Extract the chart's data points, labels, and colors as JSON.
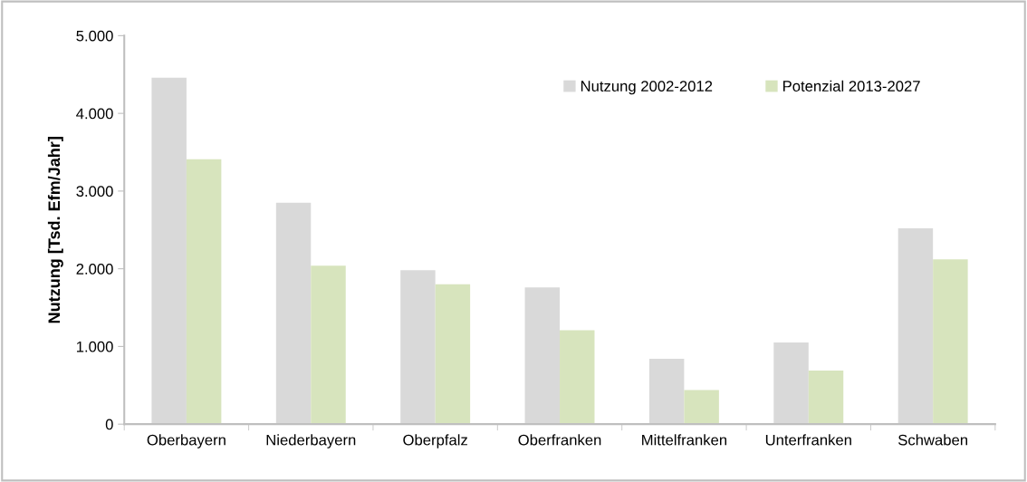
{
  "chart_data": {
    "type": "bar",
    "ylabel": "Nutzung [Tsd. Efm/Jahr]",
    "categories": [
      "Oberbayern",
      "Niederbayern",
      "Oberpfalz",
      "Oberfranken",
      "Mittelfranken",
      "Unterfranken",
      "Schwaben"
    ],
    "series": [
      {
        "name": "Nutzung 2002-2012",
        "color": "#d9d9d9",
        "values": [
          4460,
          2850,
          1980,
          1760,
          840,
          1050,
          2520
        ]
      },
      {
        "name": "Potenzial 2013-2027",
        "color": "#d7e4bd",
        "values": [
          3410,
          2040,
          1800,
          1210,
          440,
          690,
          2120
        ]
      }
    ],
    "ylim": [
      0,
      5000
    ],
    "yticks": [
      {
        "value": 0,
        "label": "0"
      },
      {
        "value": 1000,
        "label": "1.000"
      },
      {
        "value": 2000,
        "label": "2.000"
      },
      {
        "value": 3000,
        "label": "3.000"
      },
      {
        "value": 4000,
        "label": "4.000"
      },
      {
        "value": 5000,
        "label": "5.000"
      }
    ],
    "grid": false,
    "legend": "top right"
  }
}
